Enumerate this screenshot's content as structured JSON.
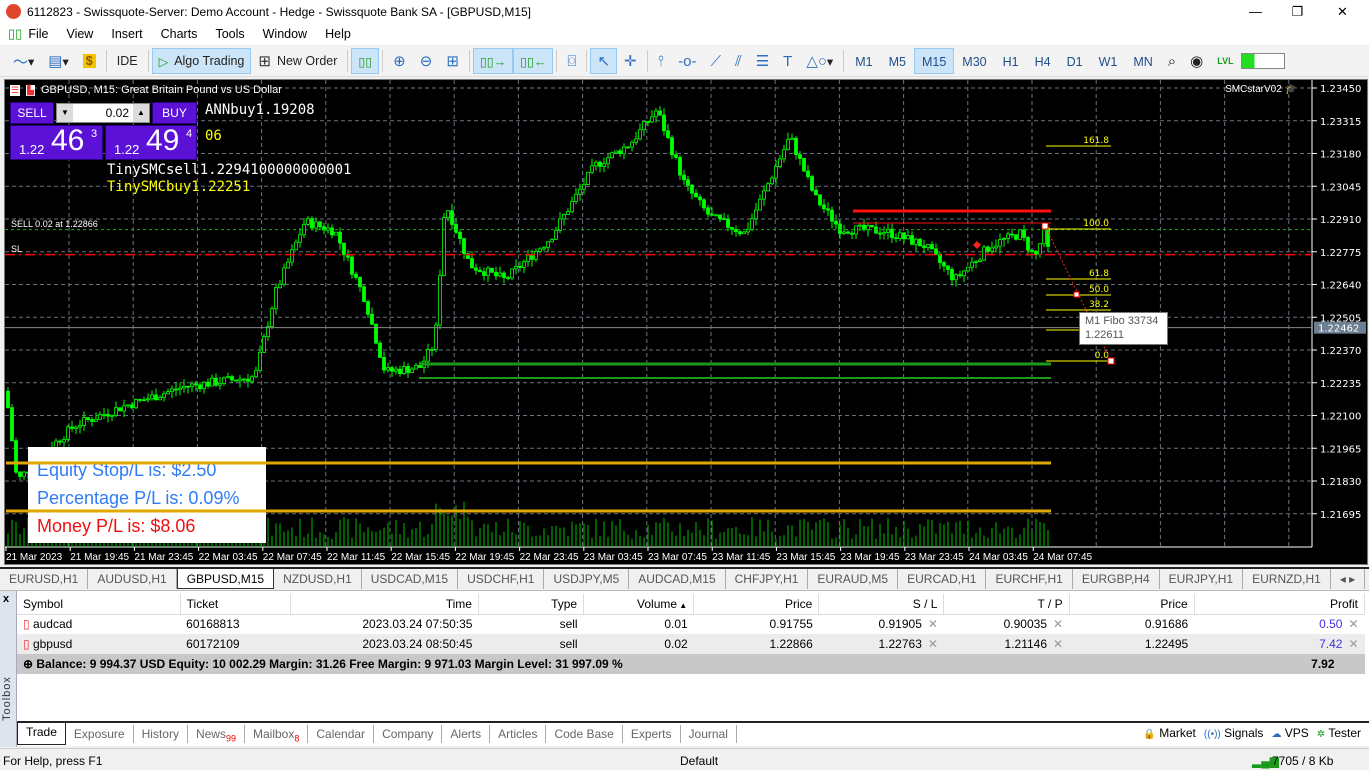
{
  "window": {
    "title": "6112823 - Swissquote-Server: Demo Account - Hedge - Swissquote Bank SA - [GBPUSD,M15]",
    "minimize": "—",
    "maximize": "❐",
    "close": "✕"
  },
  "menu": [
    "File",
    "View",
    "Insert",
    "Charts",
    "Tools",
    "Window",
    "Help"
  ],
  "toolbar": {
    "ide": "IDE",
    "algo_trading": "Algo Trading",
    "new_order": "New Order",
    "timeframes": [
      "M1",
      "M5",
      "M15",
      "M30",
      "H1",
      "H4",
      "D1",
      "W1",
      "MN"
    ],
    "active_timeframe": "M15",
    "lvl": "LVL"
  },
  "chart": {
    "header": "GBPUSD, M15:  Great Britain Pound vs US Dollar",
    "indicator_name": "SMCstarV02",
    "one_click": {
      "sell": "SELL",
      "buy": "BUY",
      "volume": "0.02",
      "bid_prefix": "1.22",
      "bid_big": "46",
      "bid_sup": "3",
      "ask_prefix": "1.22",
      "ask_big": "49",
      "ask_sup": "4"
    },
    "overlay_text": {
      "ann": "ANNbuy1.19208",
      "tiny_sell": "TinySMCsell1.2294100000000001",
      "tiny_buy": "TinySMCbuy1.22251",
      "hidden_partial": "06"
    },
    "sell_label": "SELL 0.02 at 1.22866",
    "sl_label": "SL",
    "price_axis": [
      "1.23450",
      "1.23315",
      "1.23180",
      "1.23045",
      "1.22910",
      "1.22775",
      "1.22640",
      "1.22505",
      "1.22370",
      "1.22235",
      "1.22100",
      "1.21965",
      "1.21830",
      "1.21695"
    ],
    "current_price": "1.22462",
    "time_axis": [
      "21 Mar 2023",
      "21 Mar 19:45",
      "21 Mar 23:45",
      "22 Mar 03:45",
      "22 Mar 07:45",
      "22 Mar 11:45",
      "22 Mar 15:45",
      "22 Mar 19:45",
      "22 Mar 23:45",
      "23 Mar 03:45",
      "23 Mar 07:45",
      "23 Mar 11:45",
      "23 Mar 15:45",
      "23 Mar 19:45",
      "23 Mar 23:45",
      "24 Mar 03:45",
      "24 Mar 07:45"
    ],
    "fibo_levels": [
      "161.8",
      "100.0",
      "61.8",
      "50.0",
      "38.2",
      "0.0"
    ],
    "fibo_tooltip": {
      "line1": "M1 Fibo 33734",
      "line2": "1.22611"
    },
    "info_box": {
      "equity": "Equity Stop/L is: $2.50",
      "percentage": "Percentage P/L is: 0.09%",
      "money": "Money P/L is: $8.06"
    },
    "colors": {
      "bull": "#00ff00",
      "bear": "#00ff00",
      "sl_line": "#ff0000",
      "entry_line": "#00c000",
      "fibo": "#ffff00",
      "pl_lines": "#e0a800"
    }
  },
  "chart_tabs": [
    "EURUSD,H1",
    "AUDUSD,H1",
    "GBPUSD,M15",
    "NZDUSD,H1",
    "USDCAD,M15",
    "USDCHF,H1",
    "USDJPY,M5",
    "AUDCAD,M15",
    "CHFJPY,H1",
    "EURAUD,M5",
    "EURCAD,H1",
    "EURCHF,H1",
    "EURGBP,H4",
    "EURJPY,H1",
    "EURNZD,H1"
  ],
  "active_chart_tab": "GBPUSD,M15",
  "trade": {
    "columns": [
      "Symbol",
      "Ticket",
      "Time",
      "Type",
      "Volume",
      "Price",
      "S / L",
      "T / P",
      "Price",
      "Profit"
    ],
    "rows": [
      [
        "audcad",
        "60168813",
        "2023.03.24 07:50:35",
        "sell",
        "0.01",
        "0.91755",
        "0.91905",
        "0.90035",
        "0.91686",
        "0.50"
      ],
      [
        "gbpusd",
        "60172109",
        "2023.03.24 08:50:45",
        "sell",
        "0.02",
        "1.22866",
        "1.22763",
        "1.21146",
        "1.22495",
        "7.42"
      ]
    ],
    "summary": "Balance: 9 994.37 USD  Equity: 10 002.29  Margin: 31.26  Free Margin: 9 971.03  Margin Level: 31 997.09 %",
    "total": "7.92"
  },
  "toolbox": {
    "label": "Toolbox",
    "tabs": [
      "Trade",
      "Exposure",
      "History",
      "News",
      "Mailbox",
      "Calendar",
      "Company",
      "Alerts",
      "Articles",
      "Code Base",
      "Experts",
      "Journal"
    ],
    "news_count": "99",
    "mailbox_count": "8",
    "right": [
      "Market",
      "Signals",
      "VPS",
      "Tester"
    ]
  },
  "status": {
    "help": "For Help, press F1",
    "profile": "Default",
    "traffic": "7705 / 8 Kb"
  }
}
